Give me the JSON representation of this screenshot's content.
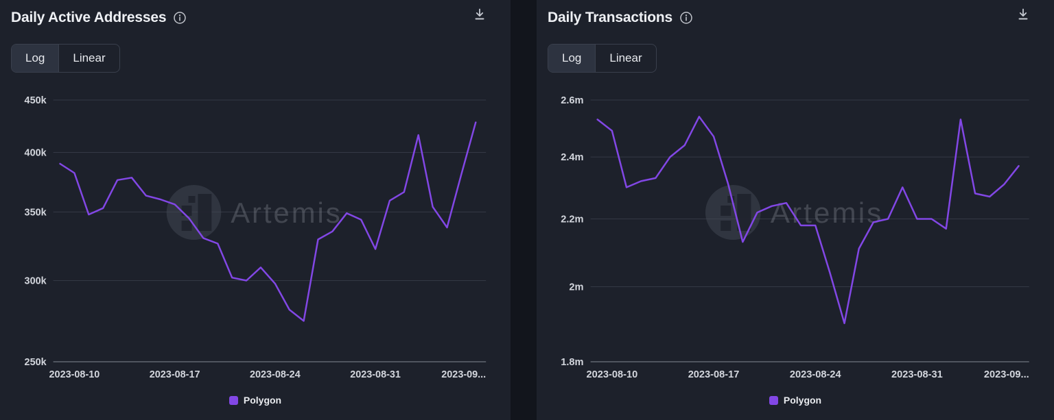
{
  "page": {
    "background": "#12151c",
    "card_background": "#1d212b",
    "watermark": "Artemis",
    "accent_color": "#8247e5"
  },
  "charts": [
    {
      "title": "Daily Active Addresses",
      "icons": {
        "info": "info-icon",
        "download": "download-icon"
      },
      "scale_toggle": {
        "options": [
          "Log",
          "Linear"
        ],
        "selected": "Log"
      },
      "legend": [
        {
          "label": "Polygon",
          "color": "#8247e5"
        }
      ],
      "chart_data": {
        "type": "line",
        "yscale": "log",
        "title": "Daily Active Addresses",
        "grid": true,
        "legend_position": "bottom",
        "x": [
          "2023-08-09",
          "2023-08-10",
          "2023-08-11",
          "2023-08-12",
          "2023-08-13",
          "2023-08-14",
          "2023-08-15",
          "2023-08-16",
          "2023-08-17",
          "2023-08-18",
          "2023-08-19",
          "2023-08-20",
          "2023-08-21",
          "2023-08-22",
          "2023-08-23",
          "2023-08-24",
          "2023-08-25",
          "2023-08-26",
          "2023-08-27",
          "2023-08-28",
          "2023-08-29",
          "2023-08-30",
          "2023-08-31",
          "2023-09-01",
          "2023-09-02",
          "2023-09-03",
          "2023-09-04",
          "2023-09-05",
          "2023-09-06",
          "2023-09-07"
        ],
        "series": [
          {
            "name": "Polygon",
            "color": "#8247e5",
            "values": [
              390000,
              382000,
              348000,
              353000,
              376000,
              378000,
              363000,
              360000,
              356000,
              345000,
              330000,
              326000,
              302000,
              300000,
              309000,
              298000,
              281000,
              274000,
              329000,
              335000,
              349000,
              344000,
              322000,
              359000,
              366000,
              416000,
              354000,
              338000,
              381000,
              428000
            ]
          }
        ],
        "ylim": [
          250000,
          450000
        ],
        "yticks": [
          {
            "value": 450000,
            "label": "450k"
          },
          {
            "value": 400000,
            "label": "400k"
          },
          {
            "value": 350000,
            "label": "350k"
          },
          {
            "value": 300000,
            "label": "300k"
          },
          {
            "value": 250000,
            "label": "250k"
          }
        ],
        "xticks": [
          {
            "index": 1,
            "label": "2023-08-10"
          },
          {
            "index": 8,
            "label": "2023-08-17"
          },
          {
            "index": 15,
            "label": "2023-08-24"
          },
          {
            "index": 22,
            "label": "2023-08-31"
          },
          {
            "index": 29,
            "label": "2023-09..."
          }
        ]
      }
    },
    {
      "title": "Daily Transactions",
      "icons": {
        "info": "info-icon",
        "download": "download-icon"
      },
      "scale_toggle": {
        "options": [
          "Log",
          "Linear"
        ],
        "selected": "Log"
      },
      "legend": [
        {
          "label": "Polygon",
          "color": "#8247e5"
        }
      ],
      "chart_data": {
        "type": "line",
        "yscale": "log",
        "title": "Daily Transactions",
        "grid": true,
        "legend_position": "bottom",
        "x": [
          "2023-08-09",
          "2023-08-10",
          "2023-08-11",
          "2023-08-12",
          "2023-08-13",
          "2023-08-14",
          "2023-08-15",
          "2023-08-16",
          "2023-08-17",
          "2023-08-18",
          "2023-08-19",
          "2023-08-20",
          "2023-08-21",
          "2023-08-22",
          "2023-08-23",
          "2023-08-24",
          "2023-08-25",
          "2023-08-26",
          "2023-08-27",
          "2023-08-28",
          "2023-08-29",
          "2023-08-30",
          "2023-08-31",
          "2023-09-01",
          "2023-09-02",
          "2023-09-03",
          "2023-09-04",
          "2023-09-05",
          "2023-09-06",
          "2023-09-07"
        ],
        "series": [
          {
            "name": "Polygon",
            "color": "#8247e5",
            "values": [
              2530000,
              2490000,
              2300000,
              2320000,
              2330000,
              2400000,
              2440000,
              2540000,
              2470000,
              2310000,
              2130000,
              2220000,
              2240000,
              2250000,
              2180000,
              2180000,
              2040000,
              1900000,
              2110000,
              2190000,
              2200000,
              2300000,
              2200000,
              2200000,
              2170000,
              2530000,
              2280000,
              2270000,
              2310000,
              2370000
            ]
          }
        ],
        "ylim": [
          1800000,
          2600000
        ],
        "yticks": [
          {
            "value": 2600000,
            "label": "2.6m"
          },
          {
            "value": 2400000,
            "label": "2.4m"
          },
          {
            "value": 2200000,
            "label": "2.2m"
          },
          {
            "value": 2000000,
            "label": "2m"
          },
          {
            "value": 1800000,
            "label": "1.8m"
          }
        ],
        "xticks": [
          {
            "index": 1,
            "label": "2023-08-10"
          },
          {
            "index": 8,
            "label": "2023-08-17"
          },
          {
            "index": 15,
            "label": "2023-08-24"
          },
          {
            "index": 22,
            "label": "2023-08-31"
          },
          {
            "index": 29,
            "label": "2023-09..."
          }
        ]
      }
    }
  ]
}
